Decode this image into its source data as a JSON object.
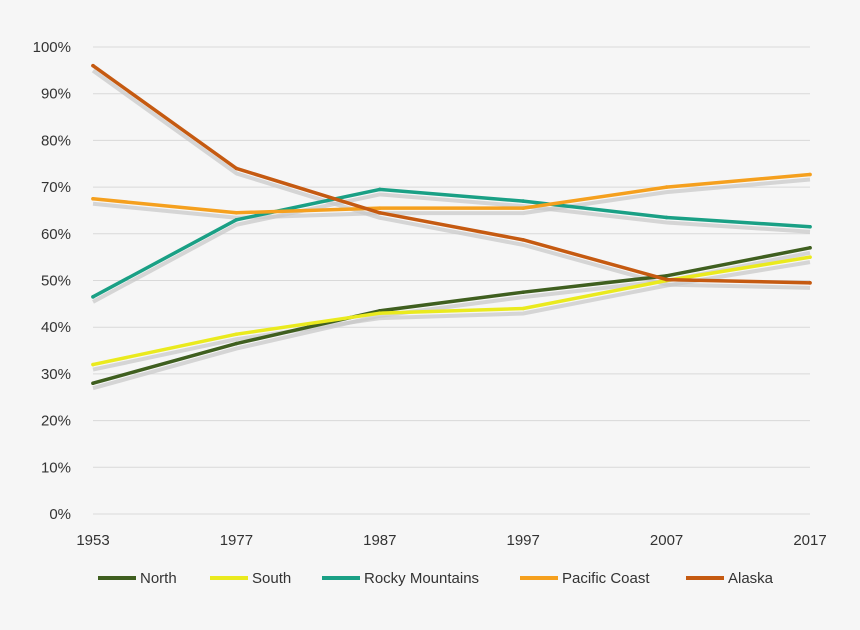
{
  "chart_data": {
    "type": "line",
    "title": "",
    "xlabel": "",
    "ylabel": "",
    "x": [
      "1953",
      "1977",
      "1987",
      "1997",
      "2007",
      "2017"
    ],
    "ylim": [
      0,
      100
    ],
    "yticks": [
      0,
      10,
      20,
      30,
      40,
      50,
      60,
      70,
      80,
      90,
      100
    ],
    "ytick_labels": [
      "0%",
      "10%",
      "20%",
      "30%",
      "40%",
      "50%",
      "60%",
      "70%",
      "80%",
      "90%",
      "100%"
    ],
    "grid": true,
    "legend_position": "bottom",
    "series": [
      {
        "name": "North",
        "color": "#3f5f1f",
        "values": [
          28,
          36.5,
          43.5,
          47.5,
          51,
          57
        ]
      },
      {
        "name": "South",
        "color": "#eaea1e",
        "values": [
          32,
          38.5,
          43,
          44,
          50,
          55
        ]
      },
      {
        "name": "Rocky Mountains",
        "color": "#1aa085",
        "values": [
          46.5,
          63,
          69.5,
          67,
          63.5,
          61.5
        ]
      },
      {
        "name": "Pacific Coast",
        "color": "#f5a01e",
        "values": [
          67.5,
          64.5,
          65.5,
          65.5,
          70,
          72.7
        ]
      },
      {
        "name": "Alaska",
        "color": "#c55a11",
        "values": [
          96,
          74,
          64.5,
          58.7,
          50.2,
          49.5
        ]
      }
    ]
  }
}
